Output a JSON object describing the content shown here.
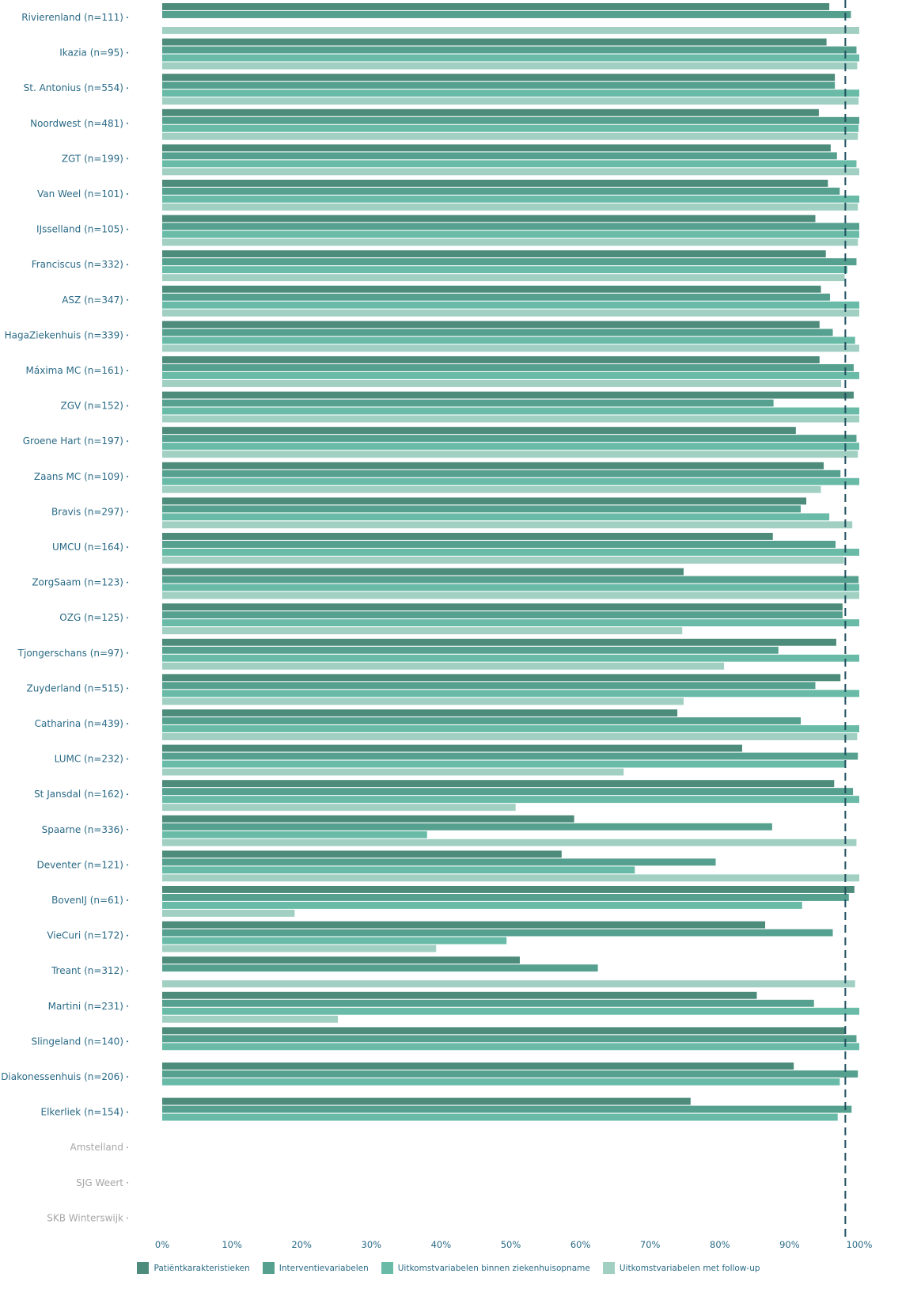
{
  "chart_data": {
    "type": "bar",
    "orientation": "horizontal",
    "title": "",
    "xlabel": "",
    "ylabel": "",
    "xlim": [
      0,
      1
    ],
    "x_ticks": [
      "0%",
      "10%",
      "20%",
      "30%",
      "40%",
      "50%",
      "60%",
      "70%",
      "80%",
      "90%",
      "100%"
    ],
    "reference_line": 0.98,
    "legend_position": "bottom",
    "categories": [
      "Rivierenland (n=111)",
      "Ikazia (n=95)",
      "St. Antonius (n=554)",
      "Noordwest (n=481)",
      "ZGT (n=199)",
      "Van Weel (n=101)",
      "IJsselland (n=105)",
      "Franciscus (n=332)",
      "ASZ (n=347)",
      "HagaZiekenhuis (n=339)",
      "Máxima MC (n=161)",
      "ZGV (n=152)",
      "Groene Hart (n=197)",
      "Zaans MC (n=109)",
      "Bravis (n=297)",
      "UMCU (n=164)",
      "ZorgSaam (n=123)",
      "OZG (n=125)",
      "Tjongerschans (n=97)",
      "Zuyderland (n=515)",
      "Catharina (n=439)",
      "LUMC (n=232)",
      "St Jansdal (n=162)",
      "Spaarne (n=336)",
      "Deventer (n=121)",
      "BovenIJ (n=61)",
      "VieCuri (n=172)",
      "Treant (n=312)",
      "Martini (n=231)",
      "Slingeland (n=140)",
      "Diakonessenhuis (n=206)",
      "Elkerliek (n=154)",
      "Amstelland",
      "SJG Weert",
      "SKB Winterswijk"
    ],
    "inactive_categories": [
      "Amstelland",
      "SJG Weert",
      "SKB Winterswijk"
    ],
    "series": [
      {
        "name": "Patiëntkarakteristieken",
        "color": "#4d8b7b",
        "values": [
          0.957,
          0.953,
          0.965,
          0.942,
          0.959,
          0.955,
          0.937,
          0.952,
          0.945,
          0.943,
          0.943,
          0.992,
          0.909,
          0.949,
          0.924,
          0.876,
          0.748,
          0.976,
          0.967,
          0.973,
          0.739,
          0.832,
          0.964,
          0.591,
          0.573,
          0.993,
          0.865,
          0.513,
          0.853,
          0.979,
          0.906,
          0.758,
          null,
          null,
          null
        ]
      },
      {
        "name": "Interventievariabelen",
        "color": "#55a08e",
        "values": [
          0.988,
          0.996,
          0.965,
          1.0,
          0.968,
          0.972,
          1.0,
          0.996,
          0.958,
          0.962,
          0.992,
          0.877,
          0.996,
          0.973,
          0.916,
          0.966,
          0.999,
          0.976,
          0.884,
          0.937,
          0.916,
          0.998,
          0.991,
          0.875,
          0.794,
          0.985,
          0.962,
          0.625,
          0.935,
          0.996,
          0.998,
          0.989,
          null,
          null,
          null
        ]
      },
      {
        "name": "Uitkomstvariabelen binnen ziekenhuisopname",
        "color": "#69bba8",
        "values": [
          null,
          1.0,
          1.0,
          0.999,
          0.996,
          1.0,
          1.0,
          0.983,
          1.0,
          0.994,
          1.0,
          1.0,
          1.0,
          1.0,
          0.957,
          1.0,
          1.0,
          1.0,
          1.0,
          1.0,
          1.0,
          0.979,
          1.0,
          0.38,
          0.678,
          0.918,
          0.494,
          null,
          1.0,
          1.0,
          0.972,
          0.969,
          null,
          null,
          null
        ]
      },
      {
        "name": "Uitkomstvariabelen met follow-up",
        "color": "#a1d0c3",
        "values": [
          1.0,
          0.997,
          0.999,
          0.998,
          1.0,
          0.998,
          0.998,
          0.979,
          1.0,
          1.0,
          0.974,
          1.0,
          0.998,
          0.945,
          0.99,
          0.978,
          1.0,
          0.746,
          0.806,
          0.748,
          0.997,
          0.662,
          0.507,
          0.996,
          1.0,
          0.19,
          0.393,
          0.994,
          0.252,
          null,
          null,
          null,
          null,
          null,
          null
        ]
      }
    ]
  }
}
